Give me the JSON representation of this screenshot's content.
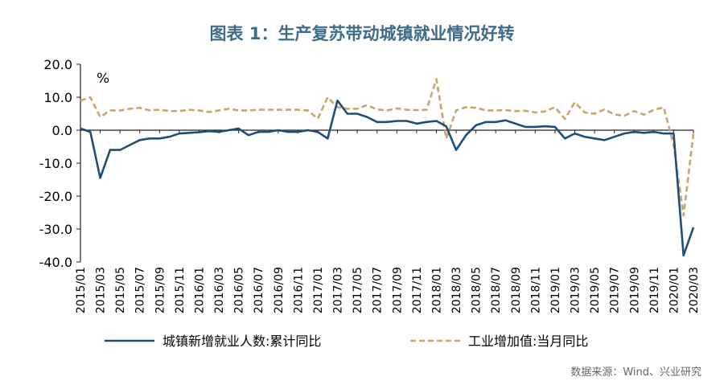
{
  "title": "图表 1：生产复苏带动城镇就业情况好转",
  "source": "数据来源：Wind、兴业研究",
  "chart_data": {
    "type": "line",
    "unit": "%",
    "ylim": [
      -40,
      20
    ],
    "yticks": [
      20,
      10,
      0,
      -10,
      -20,
      -30,
      -40
    ],
    "ytick_labels": [
      "20.0",
      "10.0",
      "0.0",
      "-10.0",
      "-20.0",
      "-30.0",
      "-40.0"
    ],
    "x": [
      "2015/01",
      "2015/02",
      "2015/03",
      "2015/04",
      "2015/05",
      "2015/06",
      "2015/07",
      "2015/08",
      "2015/09",
      "2015/10",
      "2015/11",
      "2015/12",
      "2016/01",
      "2016/02",
      "2016/03",
      "2016/04",
      "2016/05",
      "2016/06",
      "2016/07",
      "2016/08",
      "2016/09",
      "2016/10",
      "2016/11",
      "2016/12",
      "2017/01",
      "2017/02",
      "2017/03",
      "2017/04",
      "2017/05",
      "2017/06",
      "2017/07",
      "2017/08",
      "2017/09",
      "2017/10",
      "2017/11",
      "2017/12",
      "2018/01",
      "2018/02",
      "2018/03",
      "2018/04",
      "2018/05",
      "2018/06",
      "2018/07",
      "2018/08",
      "2018/09",
      "2018/10",
      "2018/11",
      "2018/12",
      "2019/01",
      "2019/02",
      "2019/03",
      "2019/04",
      "2019/05",
      "2019/06",
      "2019/07",
      "2019/08",
      "2019/09",
      "2019/10",
      "2019/11",
      "2019/12",
      "2020/01",
      "2020/02",
      "2020/03"
    ],
    "xtick_labels": [
      "2015/01",
      "2015/03",
      "2015/05",
      "2015/07",
      "2015/09",
      "2015/11",
      "2016/01",
      "2016/03",
      "2016/05",
      "2016/07",
      "2016/09",
      "2016/11",
      "2017/01",
      "2017/03",
      "2017/05",
      "2017/07",
      "2017/09",
      "2017/11",
      "2018/01",
      "2018/03",
      "2018/05",
      "2018/07",
      "2018/09",
      "2018/11",
      "2019/01",
      "2019/03",
      "2019/05",
      "2019/07",
      "2019/09",
      "2019/11",
      "2020/01",
      "2020/03"
    ],
    "series": [
      {
        "name": "城镇新增就业人数:累计同比",
        "color": "#1f4e79",
        "style": "solid",
        "values": [
          0.5,
          -0.5,
          -14.5,
          -6,
          -6,
          -4.5,
          -3,
          -2.5,
          -2.5,
          -2,
          -1,
          -0.8,
          -0.6,
          -0.3,
          -0.5,
          0,
          0.5,
          -1.5,
          -0.5,
          -0.5,
          0,
          -0.5,
          -0.5,
          0,
          -0.5,
          -2.5,
          9,
          5,
          5,
          4,
          2.5,
          2.5,
          2.8,
          2.8,
          2,
          2.5,
          2.8,
          1.2,
          -6,
          -1.5,
          1.5,
          2.5,
          2.5,
          3,
          2,
          1,
          1,
          1.2,
          1,
          -2.5,
          -1,
          -2,
          -2.5,
          -3,
          -2,
          -1,
          -0.5,
          -0.8,
          -0.5,
          -1,
          -1,
          -38,
          -29.5
        ]
      },
      {
        "name": "工业增加值:当月同比",
        "color": "#c9a46c",
        "style": "dashed",
        "values": [
          9,
          10,
          4,
          6,
          6,
          6.5,
          6.8,
          6,
          6.2,
          5.8,
          5.8,
          6.2,
          6,
          5.5,
          6,
          6.5,
          6,
          6,
          6.2,
          6.2,
          6.2,
          6.2,
          6.2,
          6,
          3.5,
          10,
          7,
          6.5,
          6.5,
          7.6,
          6.3,
          6,
          6.6,
          6.2,
          6.1,
          6.2,
          15.5,
          -2.5,
          6,
          7,
          6.8,
          6,
          6,
          6.1,
          5.8,
          5.9,
          5.4,
          5.7,
          7,
          3.4,
          8.5,
          5.4,
          5,
          6.3,
          4.8,
          4.4,
          5.8,
          4.7,
          6.2,
          6.9,
          -4.5,
          -25.9,
          -1.1
        ]
      }
    ],
    "legend_position": "bottom",
    "grid": false
  }
}
